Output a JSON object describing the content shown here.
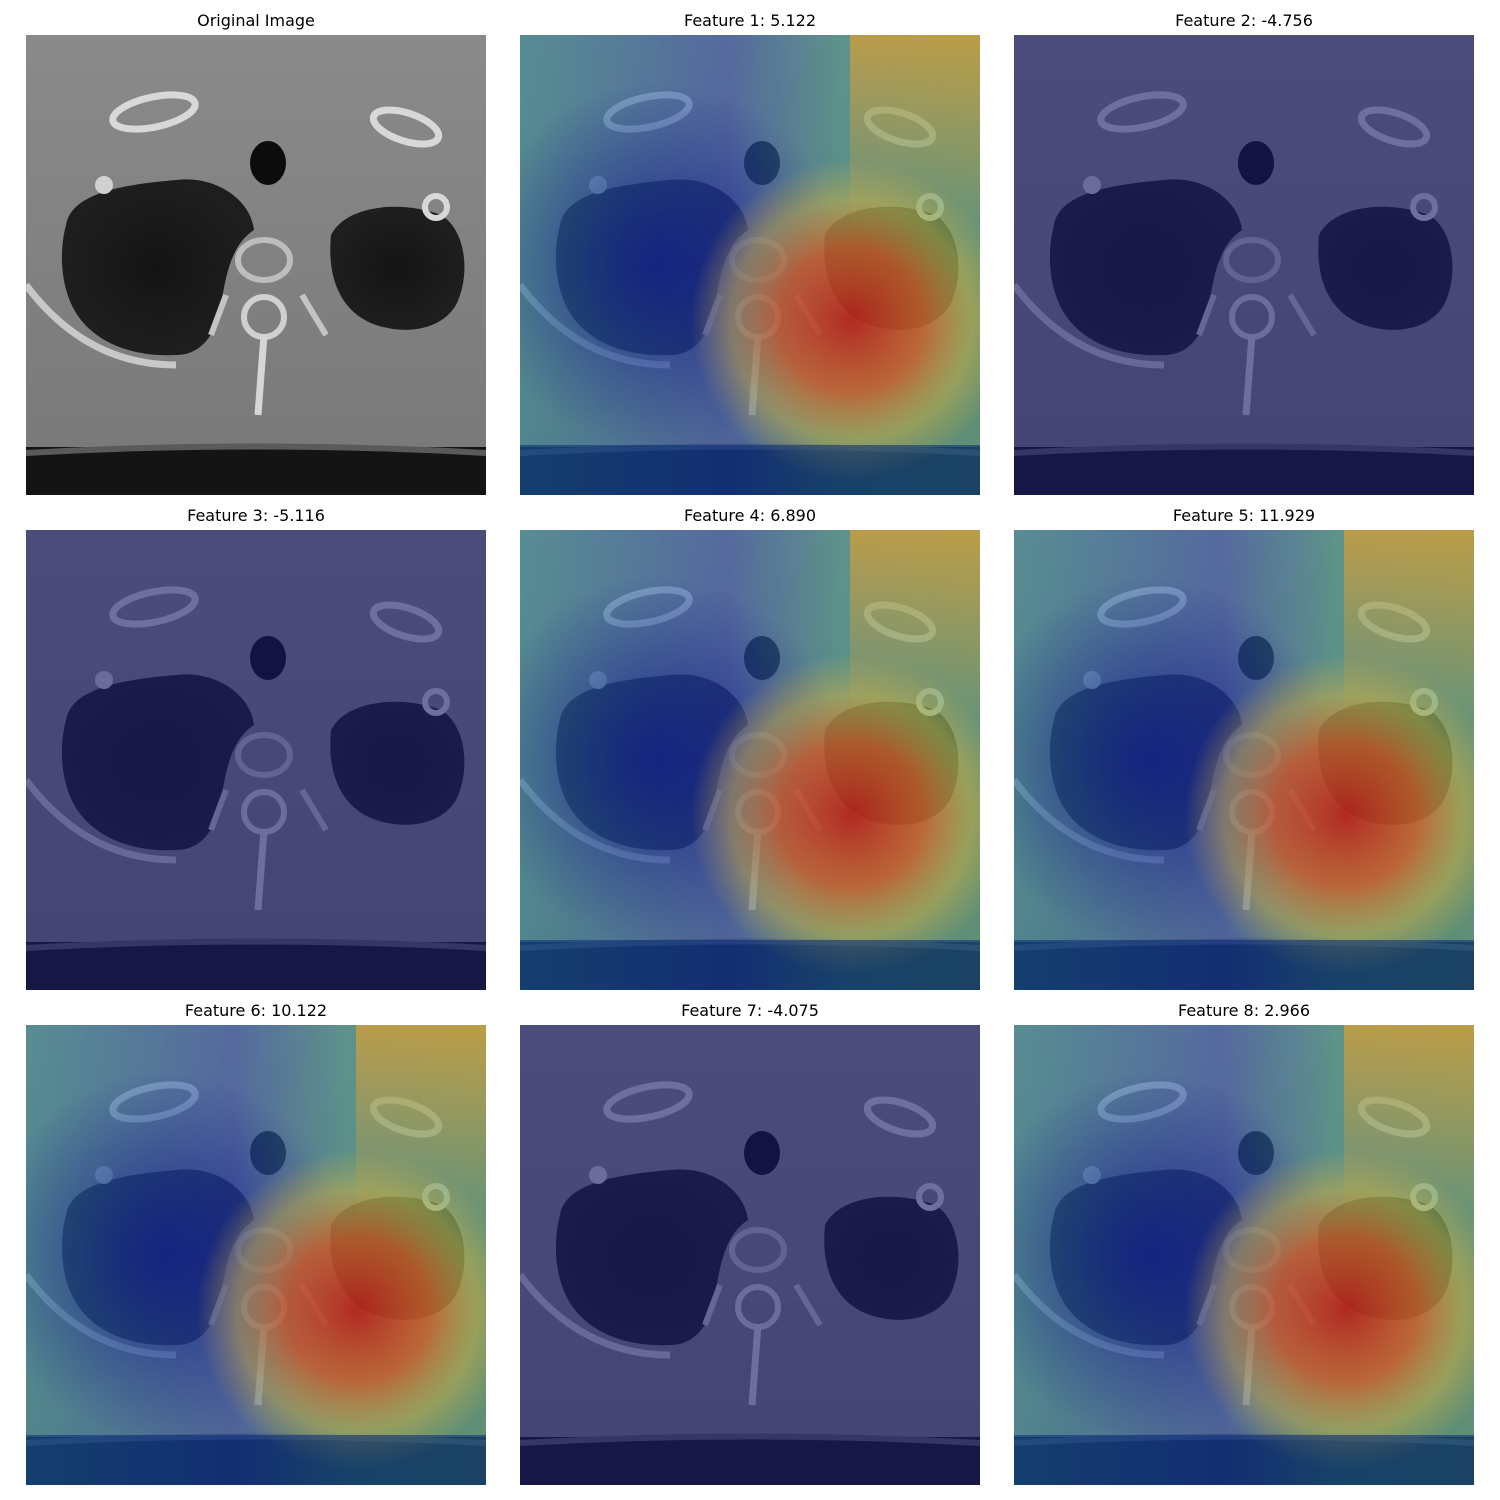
{
  "panels": [
    {
      "title": "Original Image",
      "overlay": "none"
    },
    {
      "title": "Feature 1: 5.122",
      "overlay": "heat"
    },
    {
      "title": "Feature 2: -4.756",
      "overlay": "tint"
    },
    {
      "title": "Feature 3: -5.116",
      "overlay": "tint"
    },
    {
      "title": "Feature 4: 6.890",
      "overlay": "heat"
    },
    {
      "title": "Feature 5: 11.929",
      "overlay": "heat"
    },
    {
      "title": "Feature 6: 10.122",
      "overlay": "heat"
    },
    {
      "title": "Feature 7: -4.075",
      "overlay": "tint"
    },
    {
      "title": "Feature 8: 2.966",
      "overlay": "heat"
    }
  ],
  "colors": {
    "tint": "#1a1a6e",
    "heat_low": "#0b2a8f",
    "heat_mid": "#2aa6a0",
    "heat_high": "#d21a10"
  }
}
